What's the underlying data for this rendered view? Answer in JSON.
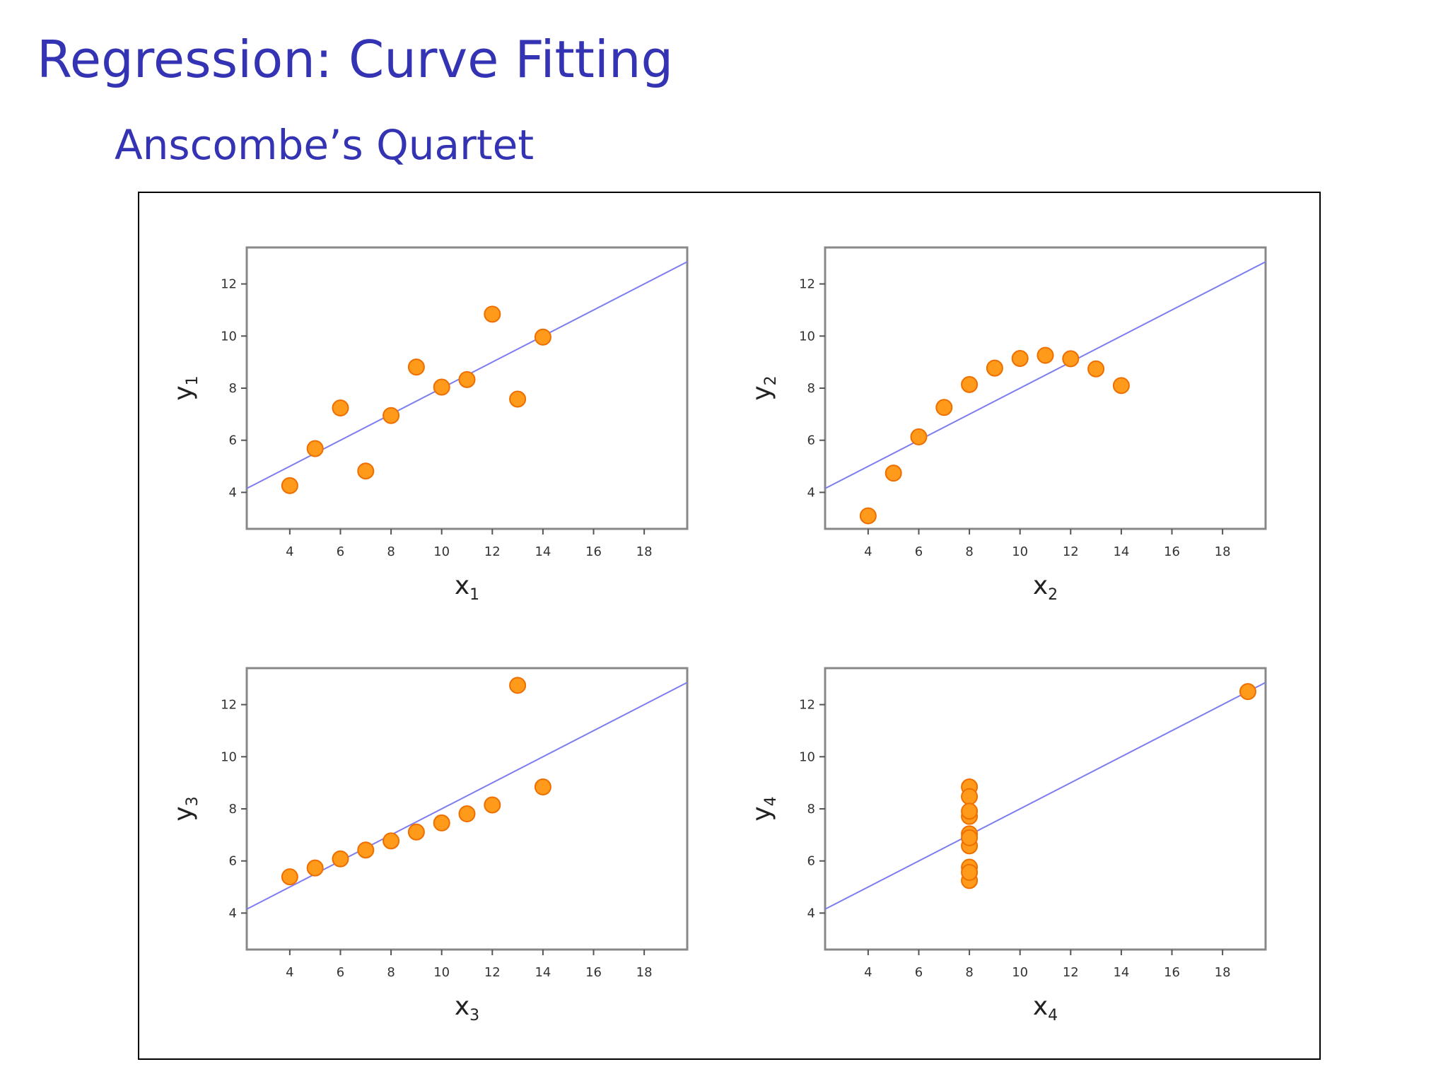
{
  "slide": {
    "title": "Regression:  Curve Fitting",
    "subtitle": "Anscombe’s Quartet"
  },
  "colors": {
    "title": "#3333b3",
    "point_fill": "#ff9a1a",
    "point_stroke": "#ee6f00",
    "fit_line": "#7d7df0",
    "axes_frame": "#888888"
  },
  "chart_data": [
    {
      "type": "scatter",
      "xlabel": "x",
      "xlabel_sub": "1",
      "ylabel": "y",
      "ylabel_sub": "1",
      "xlim": [
        2.3,
        19.7
      ],
      "ylim": [
        2.6,
        13.4
      ],
      "xticks": [
        "4",
        "6",
        "8",
        "10",
        "12",
        "14",
        "16",
        "18"
      ],
      "yticks": [
        "4",
        "6",
        "8",
        "10",
        "12"
      ],
      "x": [
        10,
        8,
        13,
        9,
        11,
        14,
        6,
        4,
        12,
        7,
        5
      ],
      "y": [
        8.04,
        6.95,
        7.58,
        8.81,
        8.33,
        9.96,
        7.24,
        4.26,
        10.84,
        4.82,
        5.68
      ],
      "fit": {
        "intercept": 3.0,
        "slope": 0.5
      }
    },
    {
      "type": "scatter",
      "xlabel": "x",
      "xlabel_sub": "2",
      "ylabel": "y",
      "ylabel_sub": "2",
      "xlim": [
        2.3,
        19.7
      ],
      "ylim": [
        2.6,
        13.4
      ],
      "xticks": [
        "4",
        "6",
        "8",
        "10",
        "12",
        "14",
        "16",
        "18"
      ],
      "yticks": [
        "4",
        "6",
        "8",
        "10",
        "12"
      ],
      "x": [
        10,
        8,
        13,
        9,
        11,
        14,
        6,
        4,
        12,
        7,
        5
      ],
      "y": [
        9.14,
        8.14,
        8.74,
        8.77,
        9.26,
        8.1,
        6.13,
        3.1,
        9.13,
        7.26,
        4.74
      ],
      "fit": {
        "intercept": 3.0,
        "slope": 0.5
      }
    },
    {
      "type": "scatter",
      "xlabel": "x",
      "xlabel_sub": "3",
      "ylabel": "y",
      "ylabel_sub": "3",
      "xlim": [
        2.3,
        19.7
      ],
      "ylim": [
        2.6,
        13.4
      ],
      "xticks": [
        "4",
        "6",
        "8",
        "10",
        "12",
        "14",
        "16",
        "18"
      ],
      "yticks": [
        "4",
        "6",
        "8",
        "10",
        "12"
      ],
      "x": [
        10,
        8,
        13,
        9,
        11,
        14,
        6,
        4,
        12,
        7,
        5
      ],
      "y": [
        7.46,
        6.77,
        12.74,
        7.11,
        7.81,
        8.84,
        6.08,
        5.39,
        8.15,
        6.42,
        5.73
      ],
      "fit": {
        "intercept": 3.0,
        "slope": 0.5
      }
    },
    {
      "type": "scatter",
      "xlabel": "x",
      "xlabel_sub": "4",
      "ylabel": "y",
      "ylabel_sub": "4",
      "xlim": [
        2.3,
        19.7
      ],
      "ylim": [
        2.6,
        13.4
      ],
      "xticks": [
        "4",
        "6",
        "8",
        "10",
        "12",
        "14",
        "16",
        "18"
      ],
      "yticks": [
        "4",
        "6",
        "8",
        "10",
        "12"
      ],
      "x": [
        8,
        8,
        8,
        8,
        8,
        8,
        8,
        19,
        8,
        8,
        8
      ],
      "y": [
        6.58,
        5.76,
        7.71,
        8.84,
        8.47,
        7.04,
        5.25,
        12.5,
        5.56,
        7.91,
        6.89
      ],
      "fit": {
        "intercept": 3.0,
        "slope": 0.5
      }
    }
  ]
}
